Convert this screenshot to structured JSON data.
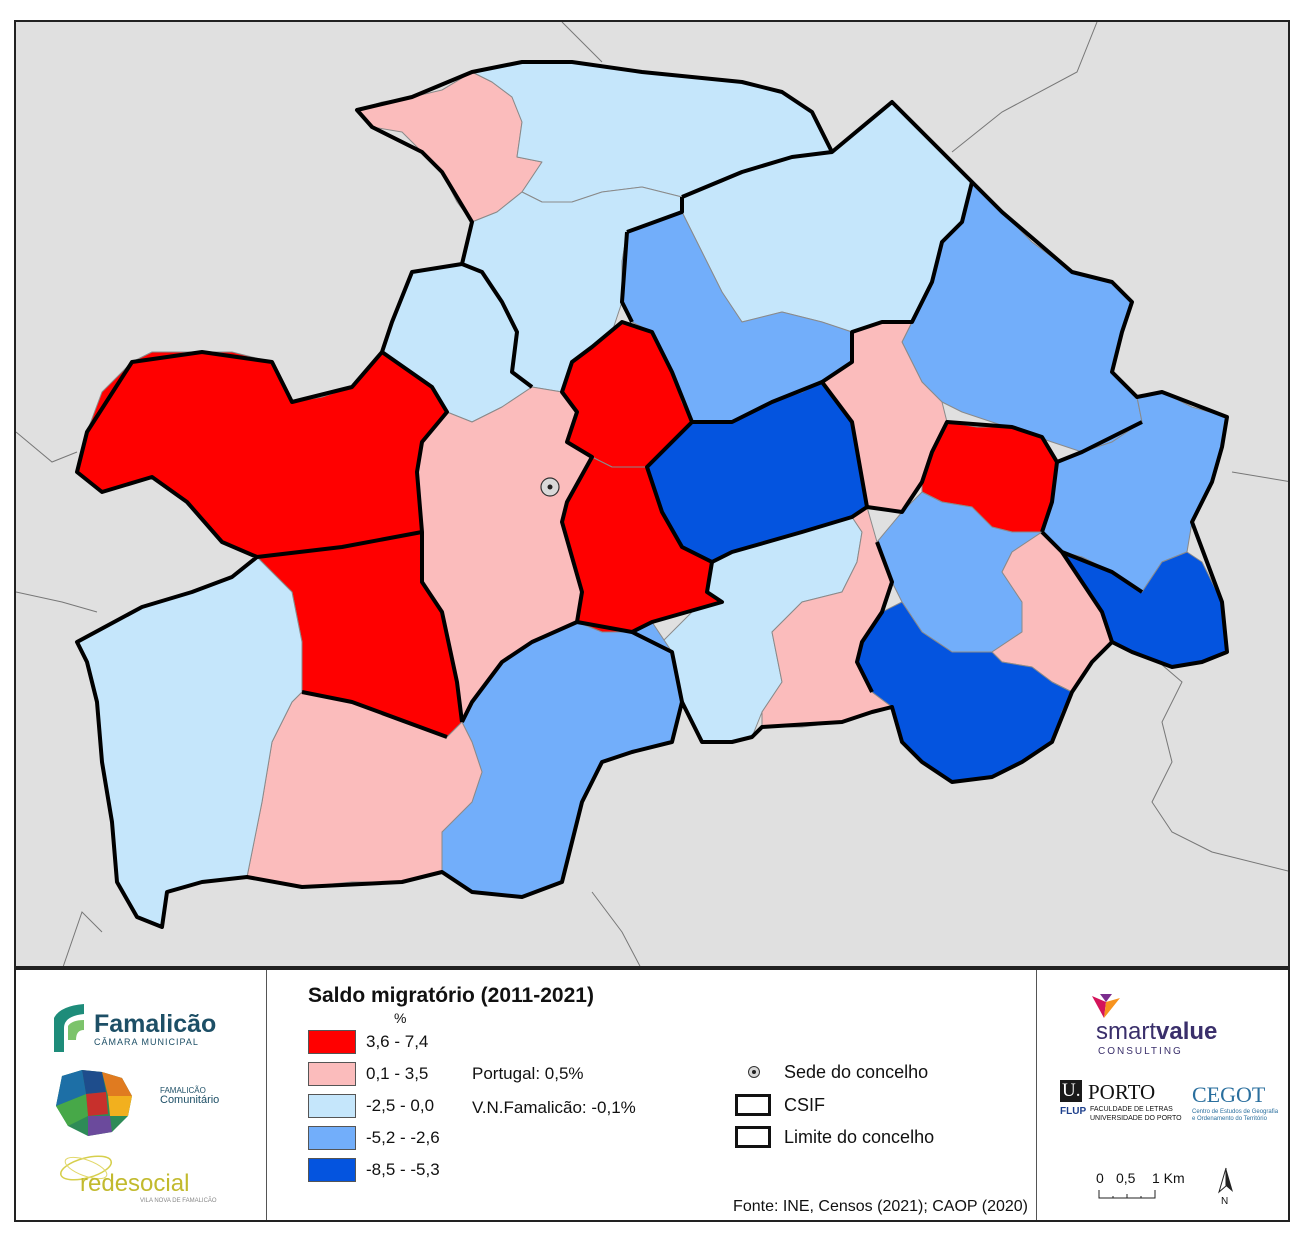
{
  "map": {
    "seat_marker": "sede-do-concelho-symbol"
  },
  "legend": {
    "title": "Saldo migratório (2011-2021)",
    "unit": "%",
    "classes": [
      {
        "label": "3,6 - 7,4",
        "color": "#ff0000"
      },
      {
        "label": "0,1 - 3,5",
        "color": "#fbbcbc"
      },
      {
        "label": "-2,5 - 0,0",
        "color": "#c5e6fb"
      },
      {
        "label": "-5,2 - -2,6",
        "color": "#72aefa"
      },
      {
        "label": "-8,5 - -5,3",
        "color": "#0454df"
      }
    ],
    "portugal": "Portugal: 0,5%",
    "famalicao": "V.N.Famalicão: -0,1%",
    "symbols": {
      "seat": "Sede do concelho",
      "csif": "CSIF",
      "limit": "Limite do concelho"
    },
    "source": "Fonte: INE, Censos (2021); CAOP (2020)"
  },
  "logos": {
    "famalicao": "Famalicão",
    "camara": "CÂMARA MUNICIPAL",
    "comunitario_top": "FAMALICÃO",
    "comunitario": "Comunitário",
    "redesocial": "redesocial",
    "redesocial_sub": "VILA NOVA DE FAMALICÃO",
    "smart": "smart",
    "value": "value",
    "consulting": "CONSULTING",
    "uporto_u": "U.",
    "uporto": "PORTO",
    "flup": "FLUP",
    "flup_text1": "FACULDADE DE LETRAS",
    "flup_text2": "UNIVERSIDADE DO PORTO",
    "cegot": "CEGOT",
    "cegot_text1": "Centro de Estudos de Geografia",
    "cegot_text2": "e Ordenamento do Território"
  },
  "scale": {
    "t0": "0",
    "t1": "0,5",
    "t2": "1 Km",
    "north": "N"
  }
}
